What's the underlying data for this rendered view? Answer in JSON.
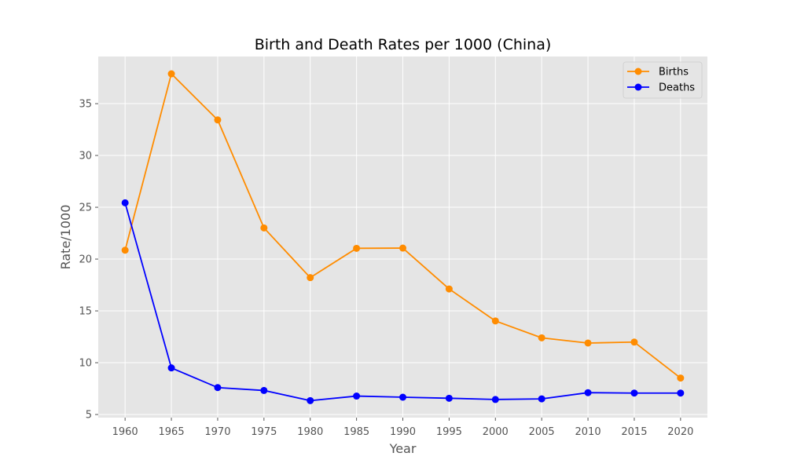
{
  "chart_data": {
    "type": "line",
    "title": "Birth and Death Rates per 1000 (China)",
    "xlabel": "Year",
    "ylabel": "Rate/1000",
    "x": [
      1960,
      1965,
      1970,
      1975,
      1980,
      1985,
      1990,
      1995,
      2000,
      2005,
      2010,
      2015,
      2020
    ],
    "x_ticks": [
      1960,
      1965,
      1970,
      1975,
      1980,
      1985,
      1990,
      1995,
      2000,
      2005,
      2010,
      2015,
      2020
    ],
    "y_ticks": [
      5,
      10,
      15,
      20,
      25,
      30,
      35
    ],
    "xlim": [
      1957.1,
      2022.9
    ],
    "ylim": [
      4.7,
      39.55
    ],
    "grid": true,
    "legend_position": "top-right",
    "series": [
      {
        "name": "Births",
        "color": "#ff8c00",
        "values": [
          20.86,
          37.88,
          33.43,
          23.01,
          18.21,
          21.04,
          21.06,
          17.12,
          14.03,
          12.4,
          11.9,
          11.99,
          8.52
        ]
      },
      {
        "name": "Deaths",
        "color": "#0000ff",
        "values": [
          25.43,
          9.5,
          7.6,
          7.32,
          6.34,
          6.78,
          6.67,
          6.57,
          6.45,
          6.51,
          7.11,
          7.07,
          7.07
        ]
      }
    ],
    "style": {
      "plot_background": "#e5e5e5",
      "grid_color": "#ffffff"
    }
  }
}
